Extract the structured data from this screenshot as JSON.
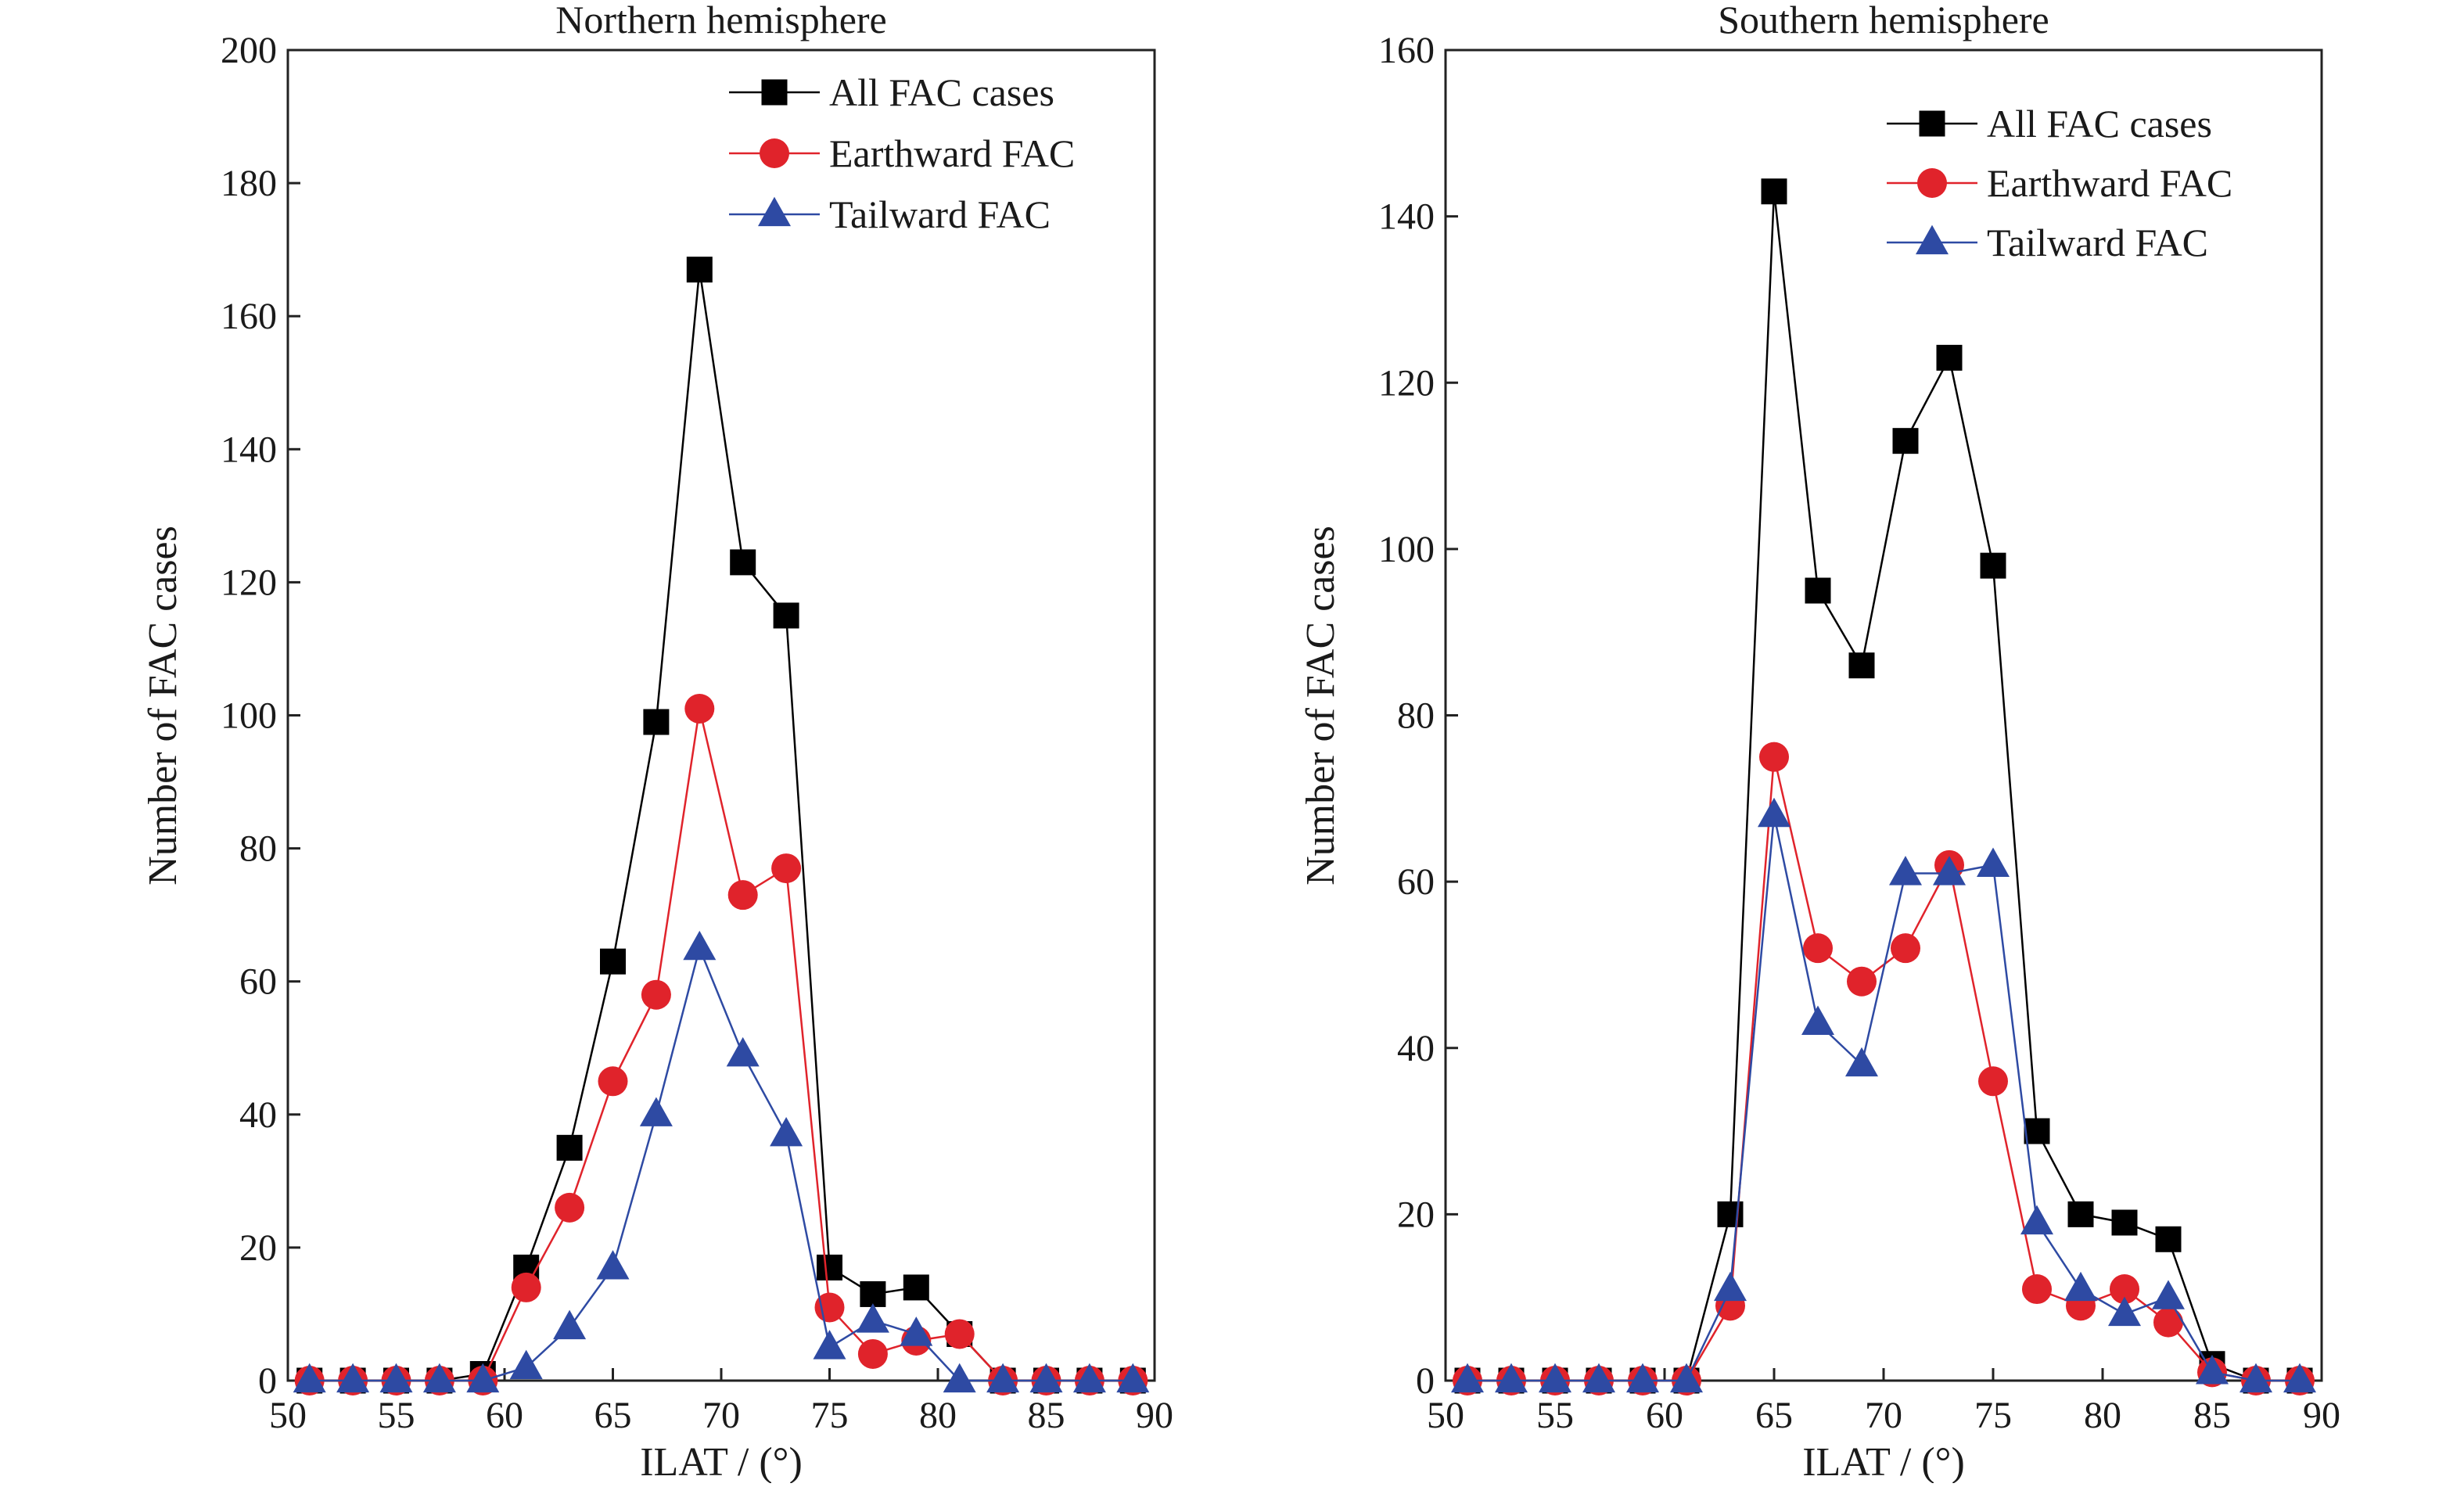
{
  "chart_data": [
    {
      "type": "line",
      "title": "Northern hemisphere",
      "xlabel": "ILAT / (°)",
      "ylabel": "Number of FAC cases",
      "xlim": [
        50,
        90
      ],
      "ylim": [
        0,
        200
      ],
      "xticks": [
        50,
        55,
        60,
        65,
        70,
        75,
        80,
        85,
        90
      ],
      "yticks": [
        0,
        20,
        40,
        60,
        80,
        100,
        120,
        140,
        160,
        180,
        200
      ],
      "grid": false,
      "legend_position": "top-right",
      "x": [
        51,
        53,
        55,
        57,
        59,
        61,
        63,
        65,
        67,
        69,
        71,
        73,
        75,
        77,
        79,
        81,
        83,
        85,
        87,
        89
      ],
      "series": [
        {
          "name": "All FAC cases",
          "color": "#000000",
          "marker": "square",
          "values": [
            0,
            0,
            0,
            0,
            1,
            17,
            35,
            63,
            99,
            167,
            123,
            115,
            17,
            13,
            14,
            7,
            0,
            0,
            0,
            0
          ]
        },
        {
          "name": "Earthward FAC",
          "color": "#e0232b",
          "marker": "circle",
          "values": [
            0,
            0,
            0,
            0,
            0,
            14,
            26,
            45,
            58,
            101,
            73,
            77,
            11,
            4,
            6,
            7,
            0,
            0,
            0,
            0
          ]
        },
        {
          "name": "Tailward FAC",
          "color": "#2e4aa3",
          "marker": "triangle",
          "values": [
            0,
            0,
            0,
            0,
            0,
            2,
            8,
            17,
            40,
            65,
            49,
            37,
            5,
            9,
            7,
            0,
            0,
            0,
            0,
            0
          ]
        }
      ]
    },
    {
      "type": "line",
      "title": "Southern hemisphere",
      "xlabel": "ILAT / (°)",
      "ylabel": "Number of FAC cases",
      "xlim": [
        50,
        90
      ],
      "ylim": [
        0,
        160
      ],
      "xticks": [
        50,
        55,
        60,
        65,
        70,
        75,
        80,
        85,
        90
      ],
      "yticks": [
        0,
        20,
        40,
        60,
        80,
        100,
        120,
        140,
        160
      ],
      "grid": false,
      "legend_position": "top-right",
      "x": [
        51,
        53,
        55,
        57,
        59,
        61,
        63,
        65,
        67,
        69,
        71,
        73,
        75,
        77,
        79,
        81,
        83,
        85,
        87,
        89
      ],
      "series": [
        {
          "name": "All FAC cases",
          "color": "#000000",
          "marker": "square",
          "values": [
            0,
            0,
            0,
            0,
            0,
            0,
            20,
            143,
            95,
            86,
            113,
            123,
            98,
            30,
            20,
            19,
            17,
            2,
            0,
            0
          ]
        },
        {
          "name": "Earthward FAC",
          "color": "#e0232b",
          "marker": "circle",
          "values": [
            0,
            0,
            0,
            0,
            0,
            0,
            9,
            75,
            52,
            48,
            52,
            62,
            36,
            11,
            9,
            11,
            7,
            1,
            0,
            0
          ]
        },
        {
          "name": "Tailward FAC",
          "color": "#2e4aa3",
          "marker": "triangle",
          "values": [
            0,
            0,
            0,
            0,
            0,
            0,
            11,
            68,
            43,
            38,
            61,
            61,
            62,
            19,
            11,
            8,
            10,
            1,
            0,
            0
          ]
        }
      ]
    }
  ]
}
